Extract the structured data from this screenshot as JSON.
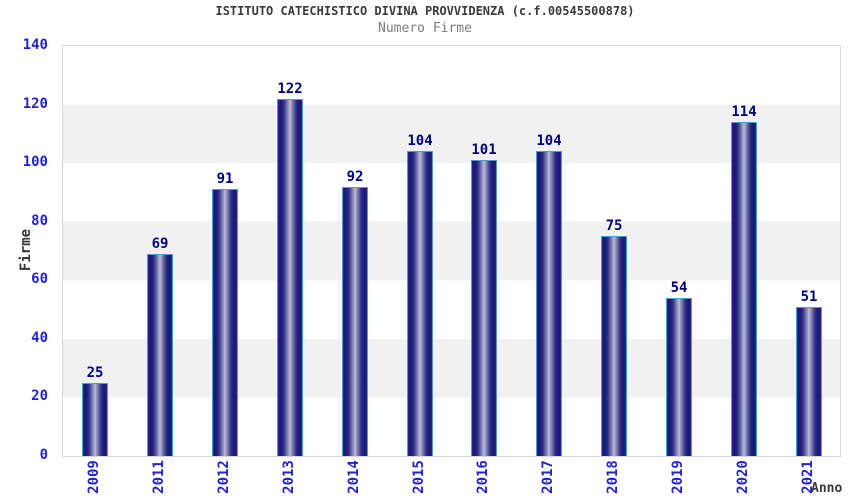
{
  "chart_data": {
    "type": "bar",
    "title": "ISTITUTO CATECHISTICO DIVINA PROVVIDENZA (c.f.00545500878)",
    "subtitle": "Numero Firme",
    "xlabel": "Anno",
    "ylabel": "Firme",
    "categories": [
      "2009",
      "2011",
      "2012",
      "2013",
      "2014",
      "2015",
      "2016",
      "2017",
      "2018",
      "2019",
      "2020",
      "2021"
    ],
    "values": [
      25,
      69,
      91,
      122,
      92,
      104,
      101,
      104,
      75,
      54,
      114,
      51
    ],
    "ylim": [
      0,
      140
    ],
    "yticks": [
      0,
      20,
      40,
      60,
      80,
      100,
      120,
      140
    ],
    "grid": "alternating horizontal bands every 20 units",
    "legend": "none",
    "value_labels": "above each bar",
    "colors": {
      "bar_fill_dark": "#17176d",
      "bar_fill_light": "#bdbdd9",
      "bar_border": "#4f9ad5",
      "tick_label": "#2323cc",
      "value_label": "#00007d",
      "band_gray": "#f1f1f1",
      "plot_border": "#d9d9d9",
      "title": "#3a3a3a",
      "subtitle": "#7d7d7d",
      "axis_title": "#333333"
    }
  }
}
